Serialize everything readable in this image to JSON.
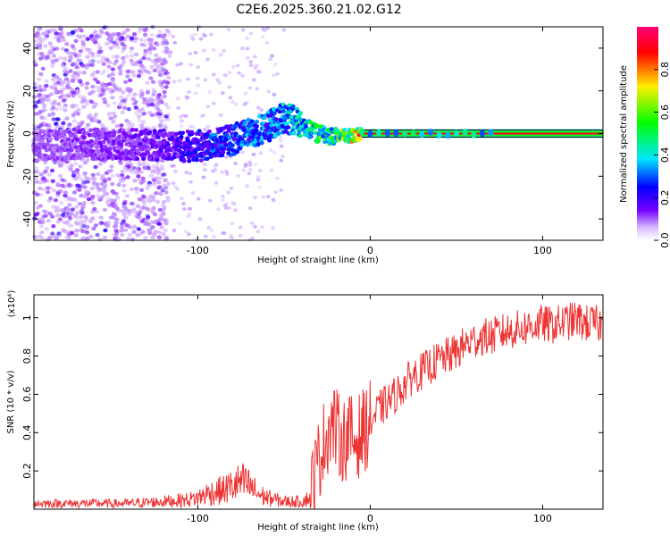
{
  "page": {
    "title": "C2E6.2025.360.21.02.G12"
  },
  "chart_data": [
    {
      "type": "heatmap",
      "title": "C2E6.2025.360.21.02.G12",
      "xlabel": "Height of straight line (km)",
      "ylabel": "Frequency (Hz)",
      "xlim": [
        -195,
        135
      ],
      "ylim": [
        -50,
        50
      ],
      "x_ticks": [
        -100,
        0,
        100
      ],
      "y_ticks": [
        -40,
        -20,
        0,
        20,
        40
      ],
      "colorbar": {
        "label": "Normalized spectral amplitude",
        "range": [
          0,
          1
        ],
        "ticks": [
          "0.0",
          "0.2",
          "0.4",
          "0.6",
          "0.8"
        ],
        "tick_values": [
          0.0,
          0.2,
          0.4,
          0.6,
          0.8
        ]
      },
      "colors": [
        "#7700ff",
        "#0000ff",
        "#00e5ff",
        "#00ff00",
        "#ffee00",
        "#ff0000",
        "#ff0066"
      ],
      "ridge": {
        "x": [
          -195,
          -170,
          -150,
          -130,
          -115,
          -100,
          -90,
          -80,
          -70,
          -60,
          -55,
          -50,
          -45,
          -40,
          -35,
          -30,
          -25,
          -20,
          -15,
          -10,
          0,
          20,
          40,
          60,
          70,
          135
        ],
        "freq": [
          -6,
          -5,
          -5,
          -5,
          -6,
          -6,
          -4,
          -3,
          0,
          3,
          5,
          8,
          6,
          4,
          2,
          0,
          -1,
          -1,
          -1,
          -1,
          0,
          0,
          0,
          0,
          0,
          0
        ],
        "amplitude": [
          0.15,
          0.18,
          0.2,
          0.22,
          0.25,
          0.3,
          0.35,
          0.35,
          0.38,
          0.4,
          0.4,
          0.42,
          0.45,
          0.5,
          0.5,
          0.55,
          0.55,
          0.6,
          0.65,
          0.7,
          0.85,
          0.9,
          0.9,
          0.9,
          0.95,
          1.0
        ]
      }
    },
    {
      "type": "line",
      "xlabel": "Height of straight line (km)",
      "ylabel": "SNR (10 * v/v)",
      "y_multiplier": "(x10⁴)",
      "xlim": [
        -195,
        135
      ],
      "ylim": [
        0,
        1.12
      ],
      "x_ticks": [
        -100,
        0,
        100
      ],
      "y_ticks": [
        0.2,
        0.4,
        0.6,
        0.8,
        1.0
      ],
      "series": [
        {
          "name": "SNR",
          "color": "#ee3333",
          "x": [
            -195,
            -180,
            -160,
            -140,
            -120,
            -105,
            -100,
            -95,
            -90,
            -85,
            -80,
            -75,
            -70,
            -65,
            -60,
            -55,
            -50,
            -45,
            -40,
            -35,
            -33,
            -30,
            -28,
            -25,
            -22,
            -20,
            -18,
            -15,
            -12,
            -10,
            -5,
            0,
            5,
            10,
            15,
            20,
            25,
            30,
            35,
            40,
            45,
            50,
            55,
            60,
            65,
            70,
            75,
            80,
            85,
            90,
            95,
            100,
            105,
            110,
            115,
            120,
            125,
            130,
            135
          ],
          "y": [
            0.03,
            0.03,
            0.03,
            0.03,
            0.04,
            0.05,
            0.06,
            0.08,
            0.09,
            0.1,
            0.12,
            0.14,
            0.12,
            0.08,
            0.06,
            0.05,
            0.04,
            0.04,
            0.04,
            0.06,
            0.15,
            0.25,
            0.32,
            0.4,
            0.45,
            0.42,
            0.38,
            0.36,
            0.4,
            0.35,
            0.4,
            0.45,
            0.52,
            0.56,
            0.6,
            0.65,
            0.7,
            0.72,
            0.75,
            0.78,
            0.8,
            0.82,
            0.86,
            0.88,
            0.9,
            0.9,
            0.92,
            0.93,
            0.94,
            0.95,
            0.96,
            0.97,
            0.96,
            0.97,
            0.98,
            0.99,
            0.97,
            0.97,
            0.96
          ]
        }
      ]
    }
  ]
}
